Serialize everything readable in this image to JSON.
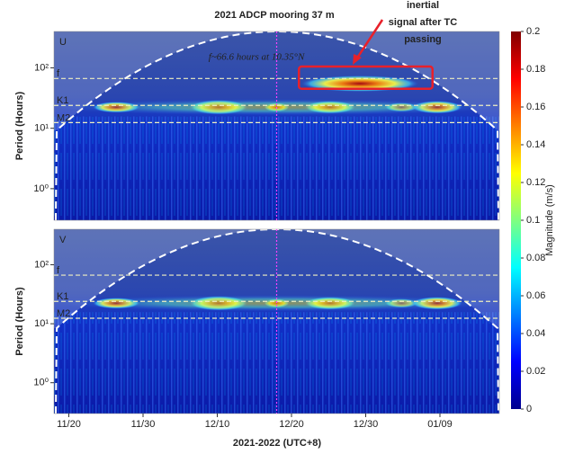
{
  "chart_data": {
    "type": "heatmap",
    "title": "2021 ADCP mooring 37 m",
    "xlabel": "2021-2022 (UTC+8)",
    "xlim": [
      "2021-11-18",
      "2022-01-17"
    ],
    "xticks": [
      {
        "value": "2021-11-20",
        "label": "11/20"
      },
      {
        "value": "2021-11-30",
        "label": "11/30"
      },
      {
        "value": "2021-12-10",
        "label": "12/10"
      },
      {
        "value": "2021-12-20",
        "label": "12/20"
      },
      {
        "value": "2021-12-30",
        "label": "12/30"
      },
      {
        "value": "2022-01-09",
        "label": "01/09"
      }
    ],
    "log_y": true,
    "annotation": "f~66.6 hours at 10.35°N",
    "callout": [
      "inertial",
      "signal after TC",
      "passing"
    ],
    "callout_color": "#e8202a",
    "colorbar": {
      "label": "Magnitude (m/s)",
      "clim": [
        0,
        0.2
      ],
      "ticks": [
        0,
        0.02,
        0.04,
        0.06,
        0.08,
        0.1,
        0.12,
        0.14,
        0.16,
        0.18,
        0.2
      ],
      "colormap": "jet"
    },
    "panels": [
      {
        "label": "U",
        "ylabel": "Period (Hours)",
        "ylim": [
          0.3,
          400
        ],
        "yticks": [
          {
            "value": 1,
            "label": "10⁰"
          },
          {
            "value": 10,
            "label": "10¹"
          },
          {
            "value": 100,
            "label": "10²"
          }
        ],
        "ref_lines": [
          {
            "label": "f",
            "value": 66.6
          },
          {
            "label": "K1",
            "value": 23.9
          },
          {
            "label": "M2",
            "value": 12.4
          }
        ],
        "tc_line": "2021-12-18",
        "box": {
          "x": [
            "2021-12-21",
            "2022-01-08"
          ],
          "y": [
            45,
            105
          ]
        }
      },
      {
        "label": "V",
        "ylabel": "Period (Hours)",
        "ylim": [
          0.3,
          400
        ],
        "yticks": [
          {
            "value": 1,
            "label": "10⁰"
          },
          {
            "value": 10,
            "label": "10¹"
          },
          {
            "value": 100,
            "label": "10²"
          }
        ],
        "ref_lines": [
          {
            "label": "f",
            "value": 66.6
          },
          {
            "label": "K1",
            "value": 23.9
          },
          {
            "label": "M2",
            "value": 12.4
          }
        ],
        "tc_line": "2021-12-18"
      }
    ]
  }
}
